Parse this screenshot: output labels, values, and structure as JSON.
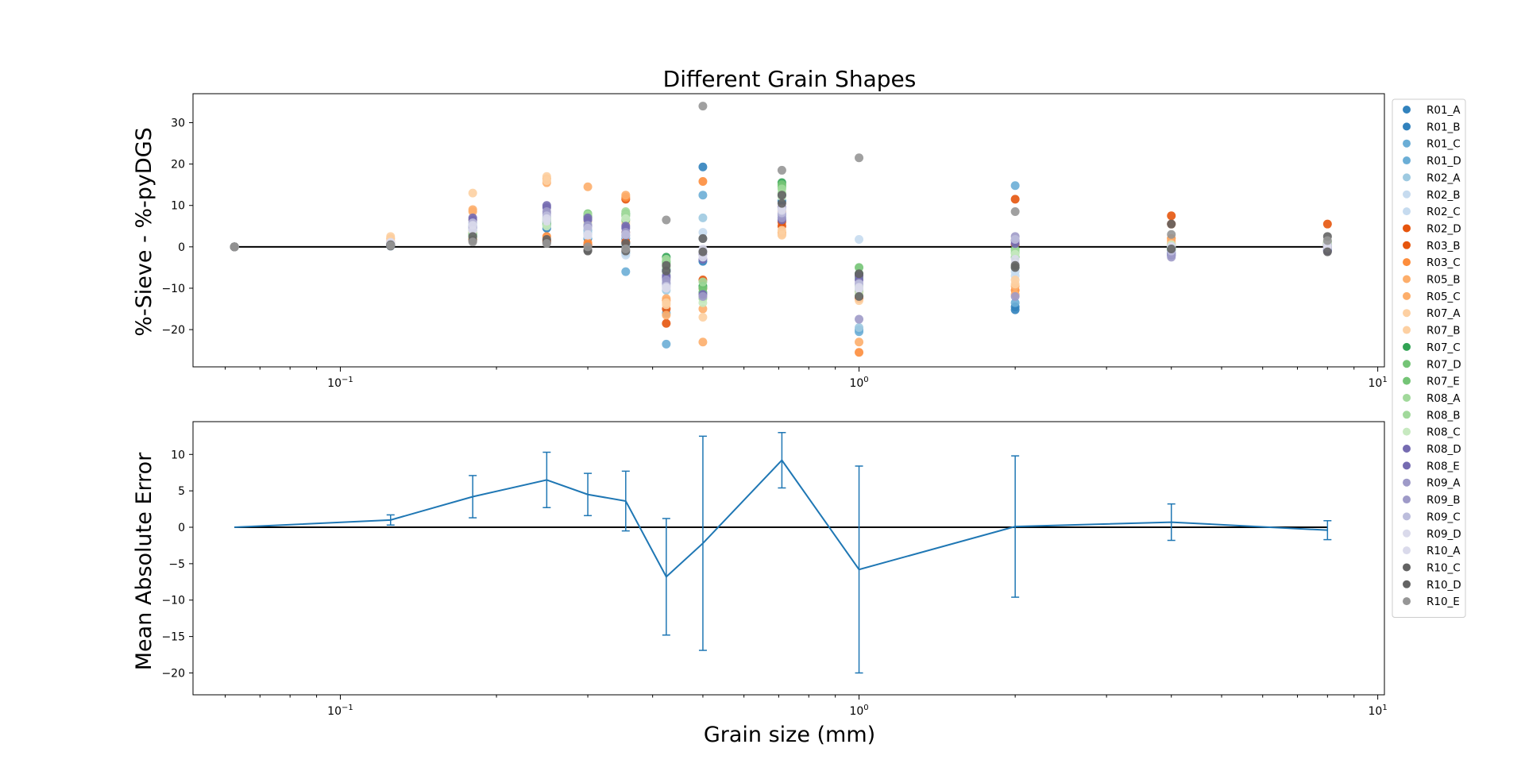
{
  "figure": {
    "title": "Different Grain Shapes",
    "xlabel": "Grain size (mm)",
    "ylabel_top": "%-Sieve - %-pyDGS",
    "ylabel_bottom": "Mean Absolute Error"
  },
  "chart_data": [
    {
      "type": "scatter",
      "title": "Different Grain Shapes",
      "xlabel": "",
      "ylabel": "%-Sieve - %-pyDGS",
      "xscale": "log",
      "xlim": [
        0.052,
        10.3
      ],
      "ylim": [
        -29,
        37
      ],
      "x_tick_labels": [
        "10^-1",
        "10^0",
        "10^1"
      ],
      "y_ticks": [
        -20,
        -10,
        0,
        10,
        20,
        30
      ],
      "grid": false,
      "reference_line_y": 0,
      "legend_position": "outside-right",
      "x_sizes": [
        0.0625,
        0.125,
        0.18,
        0.25,
        0.3,
        0.355,
        0.425,
        0.5,
        0.71,
        1.0,
        2.0,
        4.0,
        8.0
      ],
      "series": [
        {
          "name": "R01_A",
          "color": "#3182bd",
          "values": [
            0,
            0.4,
            5.0,
            5.2,
            3.0,
            2.0,
            -5.5,
            19.3,
            12.5,
            -12.0,
            -15.2,
            -2.0,
            0.5
          ]
        },
        {
          "name": "R01_B",
          "color": "#3182bd",
          "values": [
            0,
            0.2,
            4.0,
            4.5,
            2.0,
            1.0,
            -6.0,
            -3.5,
            11.0,
            -11.0,
            -14.5,
            -1.5,
            0.2
          ]
        },
        {
          "name": "R01_C",
          "color": "#6baed6",
          "values": [
            0,
            0.5,
            3.0,
            6.0,
            5.0,
            -6.0,
            -23.5,
            12.5,
            9.0,
            -20.5,
            14.8,
            -0.5,
            -0.8
          ]
        },
        {
          "name": "R01_D",
          "color": "#6baed6",
          "values": [
            0,
            0.3,
            2.5,
            5.5,
            4.0,
            -1.5,
            -16.0,
            -11.0,
            8.0,
            -20.0,
            -13.5,
            -1.0,
            -0.5
          ]
        },
        {
          "name": "R02_A",
          "color": "#9ecae1",
          "values": [
            0,
            0.6,
            5.5,
            6.5,
            3.5,
            0.5,
            -10.5,
            7.0,
            7.0,
            -19.5,
            -5.0,
            -0.2,
            0.3
          ]
        },
        {
          "name": "R02_B",
          "color": "#c6dbef",
          "values": [
            0,
            0.8,
            4.5,
            5.8,
            2.5,
            -2.0,
            -9.0,
            3.5,
            6.5,
            1.8,
            -6.0,
            0.5,
            0.8
          ]
        },
        {
          "name": "R02_C",
          "color": "#c6dbef",
          "values": [
            0,
            0.7,
            6.0,
            7.0,
            6.5,
            2.5,
            -8.5,
            2.0,
            7.5,
            -10.0,
            -7.0,
            1.0,
            1.2
          ]
        },
        {
          "name": "R02_D",
          "color": "#e6550d",
          "values": [
            0,
            0.5,
            2.0,
            1.5,
            0.5,
            11.5,
            -15.0,
            -8.0,
            5.0,
            -7.0,
            11.5,
            7.5,
            5.5
          ]
        },
        {
          "name": "R03_B",
          "color": "#e6550d",
          "values": [
            0,
            0.4,
            1.8,
            1.2,
            0.3,
            1.2,
            -18.5,
            -10.0,
            6.0,
            -12.5,
            0.5,
            5.5,
            1.0
          ]
        },
        {
          "name": "R03_C",
          "color": "#fd8d3c",
          "values": [
            0,
            0.9,
            3.5,
            2.5,
            1.0,
            12.0,
            -13.0,
            15.8,
            8.5,
            -25.5,
            -10.5,
            2.0,
            0.5
          ]
        },
        {
          "name": "R05_B",
          "color": "#fdae6b",
          "values": [
            0,
            1.2,
            9.0,
            16.5,
            14.5,
            12.5,
            -12.5,
            -15.0,
            3.5,
            -23.0,
            -11.5,
            1.5,
            0.2
          ]
        },
        {
          "name": "R05_C",
          "color": "#fdae6b",
          "values": [
            0,
            2.0,
            8.5,
            15.5,
            7.0,
            3.5,
            -16.5,
            -23.0,
            3.0,
            -12.0,
            -9.5,
            0.8,
            0.0
          ]
        },
        {
          "name": "R07_A",
          "color": "#fdd0a2",
          "values": [
            0,
            2.5,
            13.0,
            17.0,
            7.5,
            6.0,
            -13.5,
            -17.0,
            2.8,
            -13.0,
            -8.0,
            0.3,
            -0.2
          ]
        },
        {
          "name": "R07_B",
          "color": "#fdd0a2",
          "values": [
            0,
            1.5,
            6.5,
            16.0,
            6.0,
            5.5,
            -14.0,
            -12.0,
            4.0,
            -11.0,
            -9.0,
            0.6,
            0.1
          ]
        },
        {
          "name": "R07_C",
          "color": "#31a354",
          "values": [
            0,
            0.6,
            3.0,
            6.0,
            7.5,
            8.0,
            -2.5,
            -9.5,
            15.5,
            -6.5,
            -0.5,
            -0.3,
            0.6
          ]
        },
        {
          "name": "R07_D",
          "color": "#74c476",
          "values": [
            0,
            0.5,
            2.5,
            5.5,
            7.0,
            7.5,
            -3.5,
            -10.0,
            15.0,
            -5.0,
            -1.5,
            -0.5,
            0.4
          ]
        },
        {
          "name": "R07_E",
          "color": "#74c476",
          "values": [
            0,
            0.4,
            3.2,
            6.5,
            8.0,
            6.5,
            -4.0,
            -11.0,
            14.5,
            -7.5,
            -2.5,
            -0.8,
            0.8
          ]
        },
        {
          "name": "R08_A",
          "color": "#a1d99b",
          "values": [
            0,
            0.7,
            2.8,
            7.0,
            7.8,
            8.5,
            -3.0,
            -8.5,
            14.0,
            -9.5,
            -1.0,
            0.0,
            1.0
          ]
        },
        {
          "name": "R08_B",
          "color": "#a1d99b",
          "values": [
            0,
            0.8,
            2.2,
            6.8,
            6.8,
            7.8,
            -5.0,
            -12.5,
            13.0,
            -10.5,
            -0.8,
            0.2,
            1.2
          ]
        },
        {
          "name": "R08_C",
          "color": "#c7e9c0",
          "values": [
            0,
            0.9,
            3.8,
            5.0,
            5.5,
            6.8,
            -6.5,
            -13.5,
            12.0,
            -11.5,
            -1.8,
            0.4,
            1.1
          ]
        },
        {
          "name": "R08_D",
          "color": "#756bb1",
          "values": [
            0,
            0.3,
            7.0,
            10.0,
            7.0,
            5.0,
            -7.0,
            -3.0,
            9.5,
            -8.0,
            1.5,
            -2.0,
            -1.0
          ]
        },
        {
          "name": "R08_E",
          "color": "#756bb1",
          "values": [
            0,
            0.4,
            6.5,
            9.5,
            6.5,
            4.5,
            -7.5,
            -11.5,
            6.5,
            -7.0,
            0.8,
            -1.5,
            -0.8
          ]
        },
        {
          "name": "R09_A",
          "color": "#9e9ac8",
          "values": [
            0,
            0.6,
            5.0,
            8.5,
            5.0,
            3.5,
            -8.0,
            -12.0,
            7.0,
            -17.5,
            -12.0,
            -2.5,
            0.2
          ]
        },
        {
          "name": "R09_B",
          "color": "#9e9ac8",
          "values": [
            0,
            0.7,
            4.5,
            8.0,
            5.2,
            2.8,
            -8.8,
            -1.8,
            7.8,
            -8.8,
            2.5,
            -1.8,
            0.0
          ]
        },
        {
          "name": "R09_C",
          "color": "#bcbddc",
          "values": [
            0,
            0.8,
            5.8,
            7.5,
            4.5,
            3.0,
            -9.5,
            -1.0,
            8.2,
            -9.0,
            1.8,
            -1.0,
            -0.3
          ]
        },
        {
          "name": "R09_D",
          "color": "#dadaeb",
          "values": [
            0,
            1.0,
            4.0,
            6.8,
            3.0,
            -0.5,
            -10.0,
            -0.5,
            8.8,
            -10.2,
            -3.0,
            0.0,
            0.2
          ]
        },
        {
          "name": "R10_A",
          "color": "#dadaeb",
          "values": [
            0,
            1.1,
            5.2,
            6.2,
            2.8,
            -1.0,
            -9.8,
            -2.5,
            9.2,
            -9.8,
            -4.0,
            0.1,
            0.6
          ]
        },
        {
          "name": "R10_C",
          "color": "#636363",
          "values": [
            0,
            0.5,
            1.5,
            1.0,
            -1.0,
            -1.0,
            -4.5,
            2.0,
            10.5,
            -12.0,
            -5.0,
            5.5,
            2.5
          ]
        },
        {
          "name": "R10_D",
          "color": "#636363",
          "values": [
            0,
            0.2,
            2.5,
            1.8,
            -0.8,
            0.8,
            -5.8,
            -1.2,
            12.5,
            -6.5,
            -4.5,
            -0.5,
            -1.2
          ]
        },
        {
          "name": "R10_E",
          "color": "#969696",
          "values": [
            0,
            0.3,
            1.2,
            0.8,
            0.0,
            -0.5,
            6.5,
            34.0,
            18.5,
            21.5,
            8.5,
            3.0,
            1.5
          ]
        }
      ]
    },
    {
      "type": "line",
      "title": "",
      "xlabel": "Grain size (mm)",
      "ylabel": "Mean Absolute Error",
      "xscale": "log",
      "xlim": [
        0.052,
        10.3
      ],
      "ylim": [
        -23,
        14.5
      ],
      "x_tick_labels": [
        "10^-1",
        "10^0",
        "10^1"
      ],
      "y_ticks": [
        -20,
        -15,
        -10,
        -5,
        0,
        5,
        10
      ],
      "grid": false,
      "reference_line_y": 0,
      "error_bars": true,
      "series": [
        {
          "name": "",
          "color": "#1f77b4",
          "x": [
            0.0625,
            0.125,
            0.18,
            0.25,
            0.3,
            0.355,
            0.425,
            0.5,
            0.71,
            1.0,
            2.0,
            4.0,
            8.0
          ],
          "y": [
            0,
            1.0,
            4.2,
            6.5,
            4.5,
            3.6,
            -6.8,
            -2.2,
            9.2,
            -5.8,
            0.1,
            0.7,
            -0.4
          ],
          "err": [
            0,
            0.7,
            2.9,
            3.8,
            2.9,
            4.1,
            8.0,
            14.7,
            3.8,
            14.2,
            9.7,
            2.5,
            1.3
          ]
        }
      ]
    }
  ]
}
